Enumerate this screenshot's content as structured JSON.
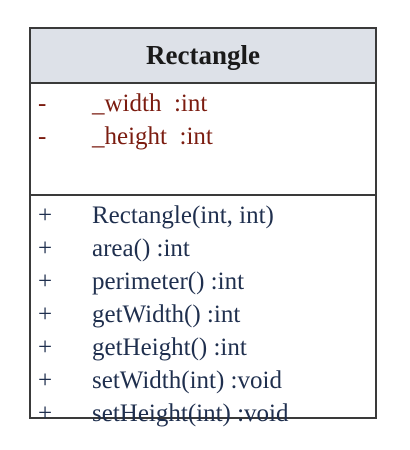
{
  "class": {
    "name": "Rectangle",
    "attributes": [
      {
        "visibility": "-",
        "name": "_width",
        "type": ":int"
      },
      {
        "visibility": "-",
        "name": "_height",
        "type": ":int"
      }
    ],
    "methods": [
      {
        "visibility": "+",
        "signature": "Rectangle(int, int)"
      },
      {
        "visibility": "+",
        "signature": "area()  :int"
      },
      {
        "visibility": "+",
        "signature": "perimeter()  :int"
      },
      {
        "visibility": "+",
        "signature": "getWidth()  :int"
      },
      {
        "visibility": "+",
        "signature": "getHeight()  :int"
      },
      {
        "visibility": "+",
        "signature": "setWidth(int)  :void"
      },
      {
        "visibility": "+",
        "signature": "setHeight(int)  :void"
      }
    ]
  },
  "colors": {
    "header_fill": "#dde1e8",
    "attribute_text": "#7b1c10",
    "method_text": "#1f2f4e",
    "border": "#3a3a3a"
  }
}
